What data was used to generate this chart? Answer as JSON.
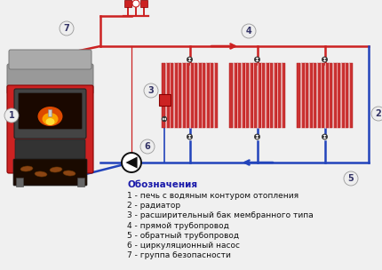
{
  "background_color": "#f0f0f0",
  "legend_title": "Обозначения",
  "legend_items": [
    "1 - печь с водяным контуром отопления",
    "2 - радиатор",
    "3 - расширительный бак мембранного типа",
    "4 - прямой трубопровод",
    "5 - обратный трубопровод",
    "6 - циркуляционный насос",
    "7 - группа безопасности"
  ],
  "red_pipe_color": "#cc2222",
  "blue_pipe_color": "#2244bb",
  "radiator_color": "#cc3333",
  "pipe_linewidth": 1.8,
  "label_circle_color": "#eeeeee",
  "label_circle_edge": "#999999",
  "label_fontsize": 7.0,
  "legend_fontsize": 6.5,
  "valve_color": "#333333",
  "pump_color": "#111111",
  "expansion_tank_color": "#cc2222",
  "safety_group_color": "#cc2222",
  "stove_red": "#cc2222",
  "stove_gray": "#888888",
  "stove_darkgray": "#555555"
}
